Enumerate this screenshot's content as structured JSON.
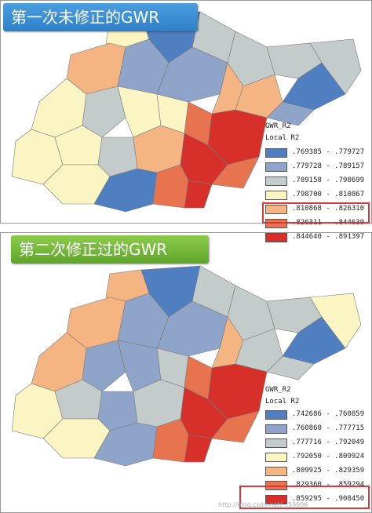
{
  "top_panel": {
    "title": "第一次未修正的GWR",
    "legend_title": "GWR_R2",
    "legend_subtitle": "Local R2",
    "legend_items": [
      {
        "label": ".769385 - .779727",
        "color": "#4f7fc0"
      },
      {
        "label": ".779728 - .789157",
        "color": "#8ea4c8"
      },
      {
        "label": ".789158 - .798699",
        "color": "#c3cccb"
      },
      {
        "label": ".798700 - .810867",
        "color": "#fbf5c4"
      },
      {
        "label": ".810868 - .826310",
        "color": "#f4b583"
      },
      {
        "label": ".826311 - .844639",
        "color": "#e8744f"
      },
      {
        "label": ".844640 - .891397",
        "color": "#d7302a"
      }
    ]
  },
  "bottom_panel": {
    "title": "第二次修正过的GWR",
    "legend_title": "GWR_R2",
    "legend_subtitle": "Local R2",
    "legend_items": [
      {
        "label": ".742686 - .760859",
        "color": "#4f7fc0"
      },
      {
        "label": ".760860 - .777715",
        "color": "#8ea4c8"
      },
      {
        "label": ".777716 - .792049",
        "color": "#c3cccb"
      },
      {
        "label": ".792050 - .809924",
        "color": "#fbf5c4"
      },
      {
        "label": ".809925 - .829359",
        "color": "#f4b583"
      },
      {
        "label": ".829360 - .859294",
        "color": "#e8744f"
      },
      {
        "label": ".859295 - .908450",
        "color": "#d7302a"
      }
    ]
  },
  "watermark": "http://blog.csdn.net/...59906"
}
